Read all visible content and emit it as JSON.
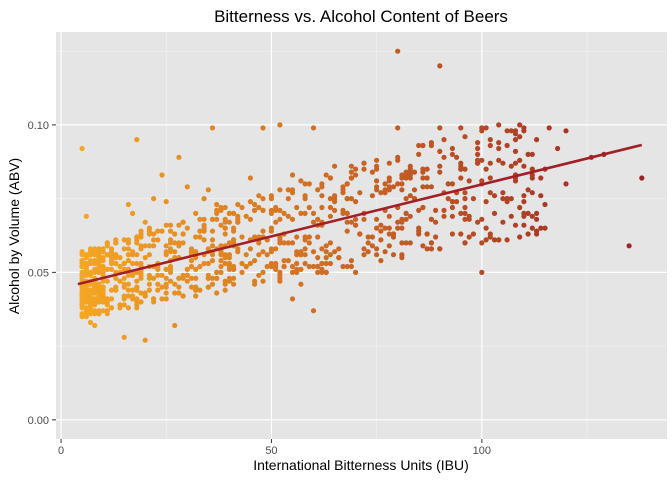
{
  "chart_data": {
    "type": "scatter",
    "title": "Bitterness vs. Alcohol Content of Beers",
    "xlabel": "International Bitterness Units (IBU)",
    "ylabel": "Alcohol by Volume (ABV)",
    "xlim": [
      -1.2,
      144
    ],
    "ylim": [
      -0.0065,
      0.1315
    ],
    "x_ticks": [
      0,
      50,
      100
    ],
    "x_tick_labels": [
      "0",
      "50",
      "100"
    ],
    "y_ticks": [
      0.0,
      0.05,
      0.1
    ],
    "y_tick_labels": [
      "0.00",
      "0.05",
      "0.10"
    ],
    "grid": true,
    "legend": "none",
    "colors": {
      "panel_background": "#e5e5e5",
      "grid_major": "#ffffff",
      "grid_minor": "#f1f1f1",
      "point_low_ibu": "#f5a623",
      "point_high_ibu": "#9b2226",
      "trend_line": "#a31f26"
    },
    "trend_line": {
      "x": [
        4,
        138
      ],
      "y": [
        0.046,
        0.0932
      ]
    },
    "points": [
      [
        5,
        0.092
      ],
      [
        6,
        0.069
      ],
      [
        7,
        0.033
      ],
      [
        8,
        0.032
      ],
      [
        10,
        0.045
      ],
      [
        12,
        0.058
      ],
      [
        13,
        0.061
      ],
      [
        15,
        0.028
      ],
      [
        16,
        0.073
      ],
      [
        17,
        0.07
      ],
      [
        18,
        0.095
      ],
      [
        20,
        0.067
      ],
      [
        20,
        0.027
      ],
      [
        22,
        0.075
      ],
      [
        24,
        0.083
      ],
      [
        25,
        0.074
      ],
      [
        27,
        0.032
      ],
      [
        28,
        0.089
      ],
      [
        30,
        0.079
      ],
      [
        32,
        0.07
      ],
      [
        33,
        0.064
      ],
      [
        34,
        0.075
      ],
      [
        35,
        0.078
      ],
      [
        36,
        0.099
      ],
      [
        37,
        0.073
      ],
      [
        40,
        0.07
      ],
      [
        42,
        0.069
      ],
      [
        45,
        0.082
      ],
      [
        47,
        0.072
      ],
      [
        48,
        0.099
      ],
      [
        50,
        0.058
      ],
      [
        52,
        0.1
      ],
      [
        55,
        0.083
      ],
      [
        55,
        0.041
      ],
      [
        57,
        0.046
      ],
      [
        58,
        0.075
      ],
      [
        60,
        0.099
      ],
      [
        60,
        0.037
      ],
      [
        62,
        0.072
      ],
      [
        63,
        0.05
      ],
      [
        65,
        0.074
      ],
      [
        65,
        0.086
      ],
      [
        68,
        0.07
      ],
      [
        69,
        0.082
      ],
      [
        70,
        0.085
      ],
      [
        70,
        0.05
      ],
      [
        72,
        0.068
      ],
      [
        73,
        0.062
      ],
      [
        75,
        0.085
      ],
      [
        75,
        0.068
      ],
      [
        78,
        0.079
      ],
      [
        80,
        0.125
      ],
      [
        80,
        0.099
      ],
      [
        81,
        0.067
      ],
      [
        82,
        0.084
      ],
      [
        84,
        0.075
      ],
      [
        85,
        0.064
      ],
      [
        86,
        0.093
      ],
      [
        88,
        0.068
      ],
      [
        89,
        0.071
      ],
      [
        90,
        0.12
      ],
      [
        90,
        0.099
      ],
      [
        92,
        0.075
      ],
      [
        93,
        0.063
      ],
      [
        95,
        0.099
      ],
      [
        95,
        0.085
      ],
      [
        96,
        0.07
      ],
      [
        97,
        0.062
      ],
      [
        98,
        0.075
      ],
      [
        100,
        0.099
      ],
      [
        100,
        0.05
      ],
      [
        100,
        0.08
      ],
      [
        100,
        0.068
      ],
      [
        102,
        0.093
      ],
      [
        103,
        0.061
      ],
      [
        104,
        0.088
      ],
      [
        105,
        0.075
      ],
      [
        108,
        0.095
      ],
      [
        110,
        0.07
      ],
      [
        110,
        0.099
      ],
      [
        112,
        0.065
      ],
      [
        115,
        0.085
      ],
      [
        115,
        0.065
      ],
      [
        116,
        0.099
      ],
      [
        118,
        0.092
      ],
      [
        120,
        0.08
      ],
      [
        120,
        0.098
      ],
      [
        126,
        0.089
      ],
      [
        129,
        0.09
      ],
      [
        135,
        0.059
      ],
      [
        138,
        0.082
      ]
    ]
  }
}
